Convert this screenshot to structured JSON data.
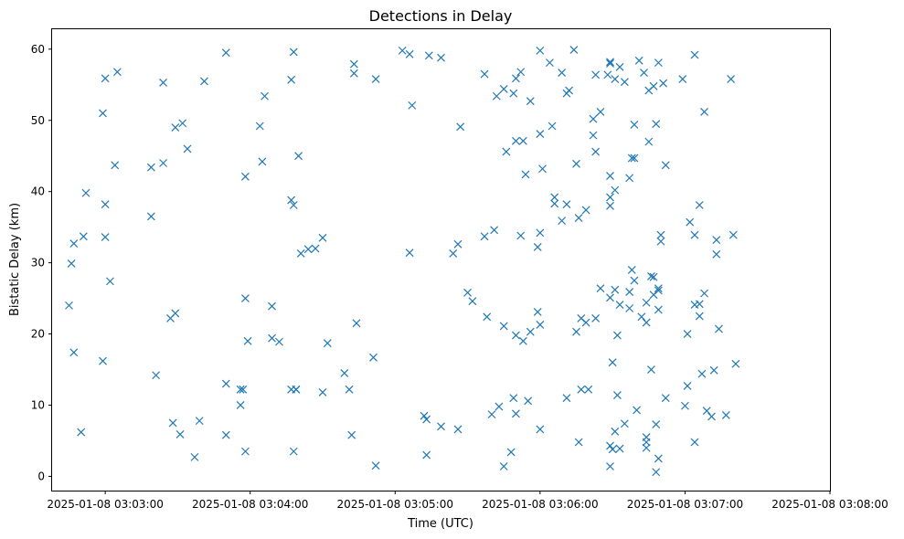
{
  "chart_data": {
    "type": "scatter",
    "title": "Detections in Delay",
    "xlabel": "Time (UTC)",
    "ylabel": "Bistatic Delay (km)",
    "x_is_time": true,
    "xlim": [
      "2025-01-08 03:02:38",
      "2025-01-08 03:08:00"
    ],
    "ylim": [
      -2.0,
      62.8
    ],
    "x_ticks": [
      {
        "value": "2025-01-08 03:03:00",
        "label": "2025-01-08 03:03:00"
      },
      {
        "value": "2025-01-08 03:04:00",
        "label": "2025-01-08 03:04:00"
      },
      {
        "value": "2025-01-08 03:05:00",
        "label": "2025-01-08 03:05:00"
      },
      {
        "value": "2025-01-08 03:06:00",
        "label": "2025-01-08 03:06:00"
      },
      {
        "value": "2025-01-08 03:07:00",
        "label": "2025-01-08 03:07:00"
      },
      {
        "value": "2025-01-08 03:08:00",
        "label": "2025-01-08 03:08:00"
      }
    ],
    "y_ticks": [
      0,
      10,
      20,
      30,
      40,
      50,
      60
    ],
    "grid": false,
    "marker": "x",
    "color": "#1f77b4",
    "points": [
      [
        "2025-01-08 03:02:45",
        24.0
      ],
      [
        "2025-01-08 03:02:46",
        29.9
      ],
      [
        "2025-01-08 03:02:47",
        17.4
      ],
      [
        "2025-01-08 03:02:47",
        32.7
      ],
      [
        "2025-01-08 03:02:50",
        6.2
      ],
      [
        "2025-01-08 03:02:51",
        33.7
      ],
      [
        "2025-01-08 03:02:52",
        39.8
      ],
      [
        "2025-01-08 03:02:59",
        16.2
      ],
      [
        "2025-01-08 03:02:59",
        51.0
      ],
      [
        "2025-01-08 03:03:00",
        55.9
      ],
      [
        "2025-01-08 03:03:00",
        38.2
      ],
      [
        "2025-01-08 03:03:00",
        33.6
      ],
      [
        "2025-01-08 03:03:02",
        27.4
      ],
      [
        "2025-01-08 03:03:04",
        43.7
      ],
      [
        "2025-01-08 03:03:05",
        56.8
      ],
      [
        "2025-01-08 03:03:19",
        43.4
      ],
      [
        "2025-01-08 03:03:19",
        36.5
      ],
      [
        "2025-01-08 03:03:21",
        14.2
      ],
      [
        "2025-01-08 03:03:24",
        55.3
      ],
      [
        "2025-01-08 03:03:24",
        44.0
      ],
      [
        "2025-01-08 03:03:27",
        22.2
      ],
      [
        "2025-01-08 03:03:28",
        7.5
      ],
      [
        "2025-01-08 03:03:29",
        22.9
      ],
      [
        "2025-01-08 03:03:29",
        49.0
      ],
      [
        "2025-01-08 03:03:31",
        5.9
      ],
      [
        "2025-01-08 03:03:32",
        49.6
      ],
      [
        "2025-01-08 03:03:34",
        46.0
      ],
      [
        "2025-01-08 03:03:37",
        2.7
      ],
      [
        "2025-01-08 03:03:39",
        7.8
      ],
      [
        "2025-01-08 03:03:41",
        55.5
      ],
      [
        "2025-01-08 03:03:50",
        59.5
      ],
      [
        "2025-01-08 03:03:50",
        5.8
      ],
      [
        "2025-01-08 03:03:50",
        13.0
      ],
      [
        "2025-01-08 03:03:56",
        10.0
      ],
      [
        "2025-01-08 03:03:56",
        12.2
      ],
      [
        "2025-01-08 03:03:57",
        12.2
      ],
      [
        "2025-01-08 03:03:58",
        42.1
      ],
      [
        "2025-01-08 03:03:58",
        3.5
      ],
      [
        "2025-01-08 03:03:58",
        25.0
      ],
      [
        "2025-01-08 03:03:59",
        19.0
      ],
      [
        "2025-01-08 03:04:04",
        49.2
      ],
      [
        "2025-01-08 03:04:05",
        44.2
      ],
      [
        "2025-01-08 03:04:06",
        53.4
      ],
      [
        "2025-01-08 03:04:09",
        19.4
      ],
      [
        "2025-01-08 03:04:09",
        23.9
      ],
      [
        "2025-01-08 03:04:12",
        18.9
      ],
      [
        "2025-01-08 03:04:17",
        55.7
      ],
      [
        "2025-01-08 03:04:17",
        38.8
      ],
      [
        "2025-01-08 03:04:17",
        12.2
      ],
      [
        "2025-01-08 03:04:18",
        59.6
      ],
      [
        "2025-01-08 03:04:18",
        38.1
      ],
      [
        "2025-01-08 03:04:18",
        3.5
      ],
      [
        "2025-01-08 03:04:19",
        12.2
      ],
      [
        "2025-01-08 03:04:19",
        12.2
      ],
      [
        "2025-01-08 03:04:20",
        45.0
      ],
      [
        "2025-01-08 03:04:21",
        31.3
      ],
      [
        "2025-01-08 03:04:24",
        31.9
      ],
      [
        "2025-01-08 03:04:27",
        32.0
      ],
      [
        "2025-01-08 03:04:30",
        33.5
      ],
      [
        "2025-01-08 03:04:30",
        11.8
      ],
      [
        "2025-01-08 03:04:32",
        18.7
      ],
      [
        "2025-01-08 03:04:39",
        14.5
      ],
      [
        "2025-01-08 03:04:41",
        12.2
      ],
      [
        "2025-01-08 03:04:42",
        5.8
      ],
      [
        "2025-01-08 03:04:43",
        57.9
      ],
      [
        "2025-01-08 03:04:43",
        56.6
      ],
      [
        "2025-01-08 03:04:44",
        21.5
      ],
      [
        "2025-01-08 03:04:51",
        16.7
      ],
      [
        "2025-01-08 03:04:52",
        1.5
      ],
      [
        "2025-01-08 03:04:52",
        55.8
      ],
      [
        "2025-01-08 03:05:03",
        59.8
      ],
      [
        "2025-01-08 03:05:06",
        59.3
      ],
      [
        "2025-01-08 03:05:06",
        31.4
      ],
      [
        "2025-01-08 03:05:07",
        52.1
      ],
      [
        "2025-01-08 03:05:12",
        8.5
      ],
      [
        "2025-01-08 03:05:13",
        3.0
      ],
      [
        "2025-01-08 03:05:13",
        8.0
      ],
      [
        "2025-01-08 03:05:14",
        59.1
      ],
      [
        "2025-01-08 03:05:19",
        58.8
      ],
      [
        "2025-01-08 03:05:19",
        7.0
      ],
      [
        "2025-01-08 03:05:24",
        31.3
      ],
      [
        "2025-01-08 03:05:26",
        32.6
      ],
      [
        "2025-01-08 03:05:26",
        6.6
      ],
      [
        "2025-01-08 03:05:27",
        49.1
      ],
      [
        "2025-01-08 03:05:30",
        25.8
      ],
      [
        "2025-01-08 03:05:32",
        24.6
      ],
      [
        "2025-01-08 03:05:37",
        33.7
      ],
      [
        "2025-01-08 03:05:37",
        56.5
      ],
      [
        "2025-01-08 03:05:38",
        22.4
      ],
      [
        "2025-01-08 03:05:40",
        8.7
      ],
      [
        "2025-01-08 03:05:41",
        34.6
      ],
      [
        "2025-01-08 03:05:42",
        53.4
      ],
      [
        "2025-01-08 03:05:43",
        9.8
      ],
      [
        "2025-01-08 03:05:45",
        54.4
      ],
      [
        "2025-01-08 03:05:45",
        21.1
      ],
      [
        "2025-01-08 03:05:45",
        1.4
      ],
      [
        "2025-01-08 03:05:46",
        45.6
      ],
      [
        "2025-01-08 03:05:48",
        3.4
      ],
      [
        "2025-01-08 03:05:49",
        53.8
      ],
      [
        "2025-01-08 03:05:49",
        11.0
      ],
      [
        "2025-01-08 03:05:50",
        55.9
      ],
      [
        "2025-01-08 03:05:50",
        47.1
      ],
      [
        "2025-01-08 03:05:50",
        19.8
      ],
      [
        "2025-01-08 03:05:50",
        8.8
      ],
      [
        "2025-01-08 03:05:52",
        56.8
      ],
      [
        "2025-01-08 03:05:52",
        33.8
      ],
      [
        "2025-01-08 03:05:53",
        47.1
      ],
      [
        "2025-01-08 03:05:53",
        19.0
      ],
      [
        "2025-01-08 03:05:54",
        42.4
      ],
      [
        "2025-01-08 03:05:55",
        10.6
      ],
      [
        "2025-01-08 03:05:56",
        52.7
      ],
      [
        "2025-01-08 03:05:56",
        20.3
      ],
      [
        "2025-01-08 03:05:59",
        32.2
      ],
      [
        "2025-01-08 03:05:59",
        23.1
      ],
      [
        "2025-01-08 03:06:00",
        59.8
      ],
      [
        "2025-01-08 03:06:00",
        48.1
      ],
      [
        "2025-01-08 03:06:00",
        34.2
      ],
      [
        "2025-01-08 03:06:00",
        21.3
      ],
      [
        "2025-01-08 03:06:00",
        6.6
      ],
      [
        "2025-01-08 03:06:01",
        43.2
      ],
      [
        "2025-01-08 03:06:04",
        58.1
      ],
      [
        "2025-01-08 03:06:05",
        49.2
      ],
      [
        "2025-01-08 03:06:06",
        38.3
      ],
      [
        "2025-01-08 03:06:06",
        39.2
      ],
      [
        "2025-01-08 03:06:09",
        56.7
      ],
      [
        "2025-01-08 03:06:09",
        35.9
      ],
      [
        "2025-01-08 03:06:11",
        53.8
      ],
      [
        "2025-01-08 03:06:11",
        38.2
      ],
      [
        "2025-01-08 03:06:11",
        11.0
      ],
      [
        "2025-01-08 03:06:12",
        54.2
      ],
      [
        "2025-01-08 03:06:14",
        59.9
      ],
      [
        "2025-01-08 03:06:15",
        43.9
      ],
      [
        "2025-01-08 03:06:15",
        20.3
      ],
      [
        "2025-01-08 03:06:16",
        4.8
      ],
      [
        "2025-01-08 03:06:16",
        36.3
      ],
      [
        "2025-01-08 03:06:17",
        22.2
      ],
      [
        "2025-01-08 03:06:17",
        12.2
      ],
      [
        "2025-01-08 03:06:19",
        37.4
      ],
      [
        "2025-01-08 03:06:19",
        21.6
      ],
      [
        "2025-01-08 03:06:20",
        12.2
      ],
      [
        "2025-01-08 03:06:22",
        50.2
      ],
      [
        "2025-01-08 03:06:22",
        47.9
      ],
      [
        "2025-01-08 03:06:23",
        56.4
      ],
      [
        "2025-01-08 03:06:23",
        45.6
      ],
      [
        "2025-01-08 03:06:23",
        22.2
      ],
      [
        "2025-01-08 03:06:25",
        51.2
      ],
      [
        "2025-01-08 03:06:25",
        26.4
      ],
      [
        "2025-01-08 03:06:28",
        56.4
      ],
      [
        "2025-01-08 03:06:29",
        58.2
      ],
      [
        "2025-01-08 03:06:29",
        58.0
      ],
      [
        "2025-01-08 03:06:29",
        39.2
      ],
      [
        "2025-01-08 03:06:29",
        25.1
      ],
      [
        "2025-01-08 03:06:29",
        42.2
      ],
      [
        "2025-01-08 03:06:29",
        38.0
      ],
      [
        "2025-01-08 03:06:29",
        1.4
      ],
      [
        "2025-01-08 03:06:29",
        4.3
      ],
      [
        "2025-01-08 03:06:30",
        3.8
      ],
      [
        "2025-01-08 03:06:30",
        16.0
      ],
      [
        "2025-01-08 03:06:31",
        55.8
      ],
      [
        "2025-01-08 03:06:31",
        40.2
      ],
      [
        "2025-01-08 03:06:31",
        26.2
      ],
      [
        "2025-01-08 03:06:31",
        6.3
      ],
      [
        "2025-01-08 03:06:32",
        19.8
      ],
      [
        "2025-01-08 03:06:32",
        11.4
      ],
      [
        "2025-01-08 03:06:33",
        3.9
      ],
      [
        "2025-01-08 03:06:33",
        57.5
      ],
      [
        "2025-01-08 03:06:33",
        24.1
      ],
      [
        "2025-01-08 03:06:35",
        55.4
      ],
      [
        "2025-01-08 03:06:35",
        7.4
      ],
      [
        "2025-01-08 03:06:37",
        25.9
      ],
      [
        "2025-01-08 03:06:37",
        23.6
      ],
      [
        "2025-01-08 03:06:37",
        41.9
      ],
      [
        "2025-01-08 03:06:38",
        29.0
      ],
      [
        "2025-01-08 03:06:38",
        44.7
      ],
      [
        "2025-01-08 03:06:39",
        44.7
      ],
      [
        "2025-01-08 03:06:39",
        27.5
      ],
      [
        "2025-01-08 03:06:39",
        49.4
      ],
      [
        "2025-01-08 03:06:40",
        9.3
      ],
      [
        "2025-01-08 03:06:41",
        58.4
      ],
      [
        "2025-01-08 03:06:42",
        22.4
      ],
      [
        "2025-01-08 03:06:43",
        56.7
      ],
      [
        "2025-01-08 03:06:44",
        21.6
      ],
      [
        "2025-01-08 03:06:44",
        24.4
      ],
      [
        "2025-01-08 03:06:44",
        5.5
      ],
      [
        "2025-01-08 03:06:44",
        4.8
      ],
      [
        "2025-01-08 03:06:44",
        4.0
      ],
      [
        "2025-01-08 03:06:45",
        54.2
      ],
      [
        "2025-01-08 03:06:45",
        47.0
      ],
      [
        "2025-01-08 03:06:46",
        28.1
      ],
      [
        "2025-01-08 03:06:46",
        15.0
      ],
      [
        "2025-01-08 03:06:47",
        54.8
      ],
      [
        "2025-01-08 03:06:47",
        28.0
      ],
      [
        "2025-01-08 03:06:47",
        25.5
      ],
      [
        "2025-01-08 03:06:48",
        49.5
      ],
      [
        "2025-01-08 03:06:48",
        7.3
      ],
      [
        "2025-01-08 03:06:48",
        0.6
      ],
      [
        "2025-01-08 03:06:49",
        58.1
      ],
      [
        "2025-01-08 03:06:49",
        26.4
      ],
      [
        "2025-01-08 03:06:49",
        26.1
      ],
      [
        "2025-01-08 03:06:49",
        23.4
      ],
      [
        "2025-01-08 03:06:49",
        2.5
      ],
      [
        "2025-01-08 03:06:50",
        33.9
      ],
      [
        "2025-01-08 03:06:50",
        33.0
      ],
      [
        "2025-01-08 03:06:51",
        55.2
      ],
      [
        "2025-01-08 03:06:52",
        43.7
      ],
      [
        "2025-01-08 03:06:52",
        11.0
      ],
      [
        "2025-01-08 03:06:59",
        55.8
      ],
      [
        "2025-01-08 03:07:00",
        9.9
      ],
      [
        "2025-01-08 03:07:01",
        12.7
      ],
      [
        "2025-01-08 03:07:01",
        20.0
      ],
      [
        "2025-01-08 03:07:02",
        35.7
      ],
      [
        "2025-01-08 03:07:04",
        24.1
      ],
      [
        "2025-01-08 03:07:04",
        59.2
      ],
      [
        "2025-01-08 03:07:04",
        33.9
      ],
      [
        "2025-01-08 03:07:04",
        4.8
      ],
      [
        "2025-01-08 03:07:06",
        38.1
      ],
      [
        "2025-01-08 03:07:06",
        24.2
      ],
      [
        "2025-01-08 03:07:06",
        22.5
      ],
      [
        "2025-01-08 03:07:07",
        14.4
      ],
      [
        "2025-01-08 03:07:08",
        51.2
      ],
      [
        "2025-01-08 03:07:08",
        25.7
      ],
      [
        "2025-01-08 03:07:09",
        9.2
      ],
      [
        "2025-01-08 03:07:11",
        8.4
      ],
      [
        "2025-01-08 03:07:12",
        14.9
      ],
      [
        "2025-01-08 03:07:13",
        33.2
      ],
      [
        "2025-01-08 03:07:13",
        31.2
      ],
      [
        "2025-01-08 03:07:14",
        20.7
      ],
      [
        "2025-01-08 03:07:17",
        8.6
      ],
      [
        "2025-01-08 03:07:19",
        55.8
      ],
      [
        "2025-01-08 03:07:20",
        33.9
      ],
      [
        "2025-01-08 03:07:21",
        15.8
      ]
    ]
  }
}
